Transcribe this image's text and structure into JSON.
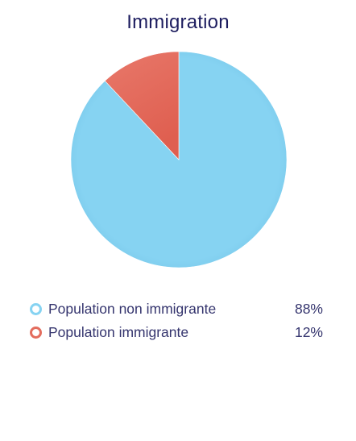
{
  "chart_data": {
    "type": "pie",
    "title": "Immigration",
    "slices": [
      {
        "label": "Population non immigrante",
        "value": 88,
        "display": "88%",
        "color": "#86d3f2",
        "color_dark": "#79c8ea"
      },
      {
        "label": "Population immigrante",
        "value": 12,
        "display": "12%",
        "color": "#e36d5e",
        "color_dark": "#d9584c"
      }
    ],
    "legend_position": "bottom",
    "start_angle_deg": 0,
    "direction": "counterclockwise-for-first-slice"
  }
}
